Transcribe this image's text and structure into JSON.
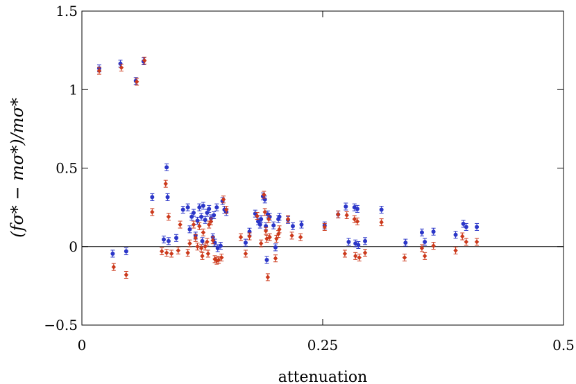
{
  "chart_data": {
    "type": "scatter",
    "xlabel": "attenuation",
    "ylabel": "(fσ* − mσ*)/mσ*",
    "xlim": [
      0,
      0.5
    ],
    "ylim": [
      -0.5,
      1.5
    ],
    "xticks": [
      "0",
      "0.25",
      "0.5"
    ],
    "yticks": [
      "−0.5",
      "0",
      "0.5",
      "1",
      "1.5"
    ],
    "zero_line": true,
    "grid": false,
    "series": [
      {
        "marker": "circle",
        "color": "#2b36c8",
        "points": [
          {
            "x": 0.018,
            "y": 1.135
          },
          {
            "x": 0.032,
            "y": -0.045
          },
          {
            "x": 0.04,
            "y": 1.165
          },
          {
            "x": 0.046,
            "y": -0.03
          },
          {
            "x": 0.056,
            "y": 1.055
          },
          {
            "x": 0.064,
            "y": 1.18
          },
          {
            "x": 0.073,
            "y": 0.315
          },
          {
            "x": 0.085,
            "y": 0.045
          },
          {
            "x": 0.088,
            "y": 0.505
          },
          {
            "x": 0.089,
            "y": 0.315
          },
          {
            "x": 0.09,
            "y": 0.035
          },
          {
            "x": 0.098,
            "y": 0.055
          },
          {
            "x": 0.105,
            "y": 0.235
          },
          {
            "x": 0.11,
            "y": 0.25
          },
          {
            "x": 0.112,
            "y": 0.11
          },
          {
            "x": 0.114,
            "y": 0.19
          },
          {
            "x": 0.116,
            "y": 0.215
          },
          {
            "x": 0.118,
            "y": 0.07
          },
          {
            "x": 0.12,
            "y": 0.165
          },
          {
            "x": 0.122,
            "y": 0.25
          },
          {
            "x": 0.124,
            "y": 0.19
          },
          {
            "x": 0.125,
            "y": 0.035
          },
          {
            "x": 0.126,
            "y": 0.26
          },
          {
            "x": 0.128,
            "y": 0.17
          },
          {
            "x": 0.13,
            "y": 0.215
          },
          {
            "x": 0.132,
            "y": 0.24
          },
          {
            "x": 0.134,
            "y": 0.18
          },
          {
            "x": 0.136,
            "y": 0.06
          },
          {
            "x": 0.137,
            "y": 0.2
          },
          {
            "x": 0.138,
            "y": 0.025
          },
          {
            "x": 0.14,
            "y": 0.25
          },
          {
            "x": 0.141,
            "y": -0.01
          },
          {
            "x": 0.144,
            "y": 0.005
          },
          {
            "x": 0.146,
            "y": 0.29
          },
          {
            "x": 0.148,
            "y": 0.235
          },
          {
            "x": 0.15,
            "y": 0.22
          },
          {
            "x": 0.17,
            "y": 0.025
          },
          {
            "x": 0.174,
            "y": 0.095
          },
          {
            "x": 0.18,
            "y": 0.21
          },
          {
            "x": 0.183,
            "y": 0.16
          },
          {
            "x": 0.185,
            "y": 0.14
          },
          {
            "x": 0.186,
            "y": 0.175
          },
          {
            "x": 0.188,
            "y": 0.32
          },
          {
            "x": 0.19,
            "y": 0.3
          },
          {
            "x": 0.191,
            "y": 0.13
          },
          {
            "x": 0.192,
            "y": -0.085
          },
          {
            "x": 0.193,
            "y": 0.205
          },
          {
            "x": 0.195,
            "y": 0.19
          },
          {
            "x": 0.199,
            "y": 0.135
          },
          {
            "x": 0.201,
            "y": -0.005
          },
          {
            "x": 0.204,
            "y": 0.175
          },
          {
            "x": 0.205,
            "y": 0.19
          },
          {
            "x": 0.214,
            "y": 0.17
          },
          {
            "x": 0.219,
            "y": 0.13
          },
          {
            "x": 0.228,
            "y": 0.14
          },
          {
            "x": 0.252,
            "y": 0.135
          },
          {
            "x": 0.266,
            "y": 0.205
          },
          {
            "x": 0.274,
            "y": 0.255
          },
          {
            "x": 0.277,
            "y": 0.03
          },
          {
            "x": 0.283,
            "y": 0.25
          },
          {
            "x": 0.284,
            "y": 0.02
          },
          {
            "x": 0.286,
            "y": 0.24
          },
          {
            "x": 0.287,
            "y": 0.01
          },
          {
            "x": 0.294,
            "y": 0.035
          },
          {
            "x": 0.311,
            "y": 0.235
          },
          {
            "x": 0.336,
            "y": 0.025
          },
          {
            "x": 0.353,
            "y": 0.09
          },
          {
            "x": 0.356,
            "y": 0.03
          },
          {
            "x": 0.365,
            "y": 0.095
          },
          {
            "x": 0.388,
            "y": 0.075
          },
          {
            "x": 0.396,
            "y": 0.145
          },
          {
            "x": 0.399,
            "y": 0.125
          },
          {
            "x": 0.41,
            "y": 0.125
          }
        ]
      },
      {
        "marker": "diamond",
        "color": "#cc3a1c",
        "points": [
          {
            "x": 0.018,
            "y": 1.12
          },
          {
            "x": 0.033,
            "y": -0.13
          },
          {
            "x": 0.041,
            "y": 1.14
          },
          {
            "x": 0.046,
            "y": -0.18
          },
          {
            "x": 0.057,
            "y": 1.05
          },
          {
            "x": 0.065,
            "y": 1.185
          },
          {
            "x": 0.073,
            "y": 0.22
          },
          {
            "x": 0.083,
            "y": -0.03
          },
          {
            "x": 0.087,
            "y": 0.4
          },
          {
            "x": 0.088,
            "y": -0.04
          },
          {
            "x": 0.09,
            "y": 0.19
          },
          {
            "x": 0.093,
            "y": -0.045
          },
          {
            "x": 0.1,
            "y": -0.025
          },
          {
            "x": 0.102,
            "y": 0.14
          },
          {
            "x": 0.11,
            "y": -0.04
          },
          {
            "x": 0.112,
            "y": 0.02
          },
          {
            "x": 0.116,
            "y": 0.14
          },
          {
            "x": 0.118,
            "y": 0.055
          },
          {
            "x": 0.12,
            "y": 0.0
          },
          {
            "x": 0.122,
            "y": 0.13
          },
          {
            "x": 0.124,
            "y": -0.01
          },
          {
            "x": 0.125,
            "y": -0.06
          },
          {
            "x": 0.126,
            "y": 0.09
          },
          {
            "x": 0.128,
            "y": 0.0
          },
          {
            "x": 0.13,
            "y": 0.03
          },
          {
            "x": 0.131,
            "y": -0.045
          },
          {
            "x": 0.132,
            "y": 0.14
          },
          {
            "x": 0.134,
            "y": 0.16
          },
          {
            "x": 0.136,
            "y": 0.04
          },
          {
            "x": 0.138,
            "y": -0.08
          },
          {
            "x": 0.14,
            "y": -0.09
          },
          {
            "x": 0.142,
            "y": -0.085
          },
          {
            "x": 0.145,
            "y": -0.07
          },
          {
            "x": 0.147,
            "y": 0.3
          },
          {
            "x": 0.15,
            "y": 0.235
          },
          {
            "x": 0.165,
            "y": 0.06
          },
          {
            "x": 0.17,
            "y": -0.045
          },
          {
            "x": 0.174,
            "y": 0.065
          },
          {
            "x": 0.182,
            "y": 0.195
          },
          {
            "x": 0.186,
            "y": 0.02
          },
          {
            "x": 0.189,
            "y": 0.33
          },
          {
            "x": 0.19,
            "y": 0.22
          },
          {
            "x": 0.191,
            "y": 0.1
          },
          {
            "x": 0.192,
            "y": 0.05
          },
          {
            "x": 0.193,
            "y": -0.195
          },
          {
            "x": 0.194,
            "y": 0.175
          },
          {
            "x": 0.195,
            "y": 0.06
          },
          {
            "x": 0.201,
            "y": -0.075
          },
          {
            "x": 0.202,
            "y": 0.05
          },
          {
            "x": 0.204,
            "y": 0.08
          },
          {
            "x": 0.205,
            "y": 0.11
          },
          {
            "x": 0.214,
            "y": 0.175
          },
          {
            "x": 0.218,
            "y": 0.07
          },
          {
            "x": 0.227,
            "y": 0.06
          },
          {
            "x": 0.252,
            "y": 0.125
          },
          {
            "x": 0.266,
            "y": 0.205
          },
          {
            "x": 0.273,
            "y": -0.045
          },
          {
            "x": 0.275,
            "y": 0.2
          },
          {
            "x": 0.283,
            "y": 0.175
          },
          {
            "x": 0.284,
            "y": -0.06
          },
          {
            "x": 0.286,
            "y": 0.16
          },
          {
            "x": 0.288,
            "y": -0.07
          },
          {
            "x": 0.294,
            "y": -0.04
          },
          {
            "x": 0.311,
            "y": 0.155
          },
          {
            "x": 0.335,
            "y": -0.07
          },
          {
            "x": 0.353,
            "y": -0.01
          },
          {
            "x": 0.356,
            "y": -0.06
          },
          {
            "x": 0.365,
            "y": 0.005
          },
          {
            "x": 0.388,
            "y": -0.025
          },
          {
            "x": 0.395,
            "y": 0.065
          },
          {
            "x": 0.399,
            "y": 0.03
          },
          {
            "x": 0.41,
            "y": 0.03
          }
        ]
      }
    ]
  }
}
